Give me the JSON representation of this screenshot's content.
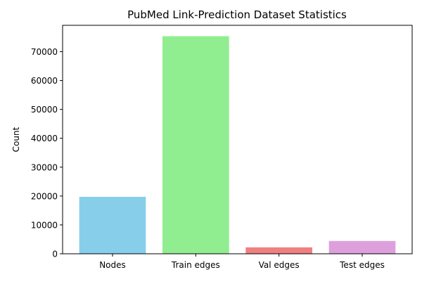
{
  "chart_data": {
    "type": "bar",
    "title": "PubMed Link-Prediction Dataset Statistics",
    "xlabel": "",
    "ylabel": "Count",
    "categories": [
      "Nodes",
      "Train edges",
      "Val edges",
      "Test edges"
    ],
    "values": [
      19717,
      75361,
      2216,
      4432
    ],
    "colors": [
      "#87ceeb",
      "#90ee90",
      "#f08080",
      "#dda0dd"
    ],
    "ylim": [
      0,
      79133
    ],
    "yticks": [
      0,
      10000,
      20000,
      30000,
      40000,
      50000,
      60000,
      70000
    ],
    "grid": false,
    "legend": "none"
  }
}
